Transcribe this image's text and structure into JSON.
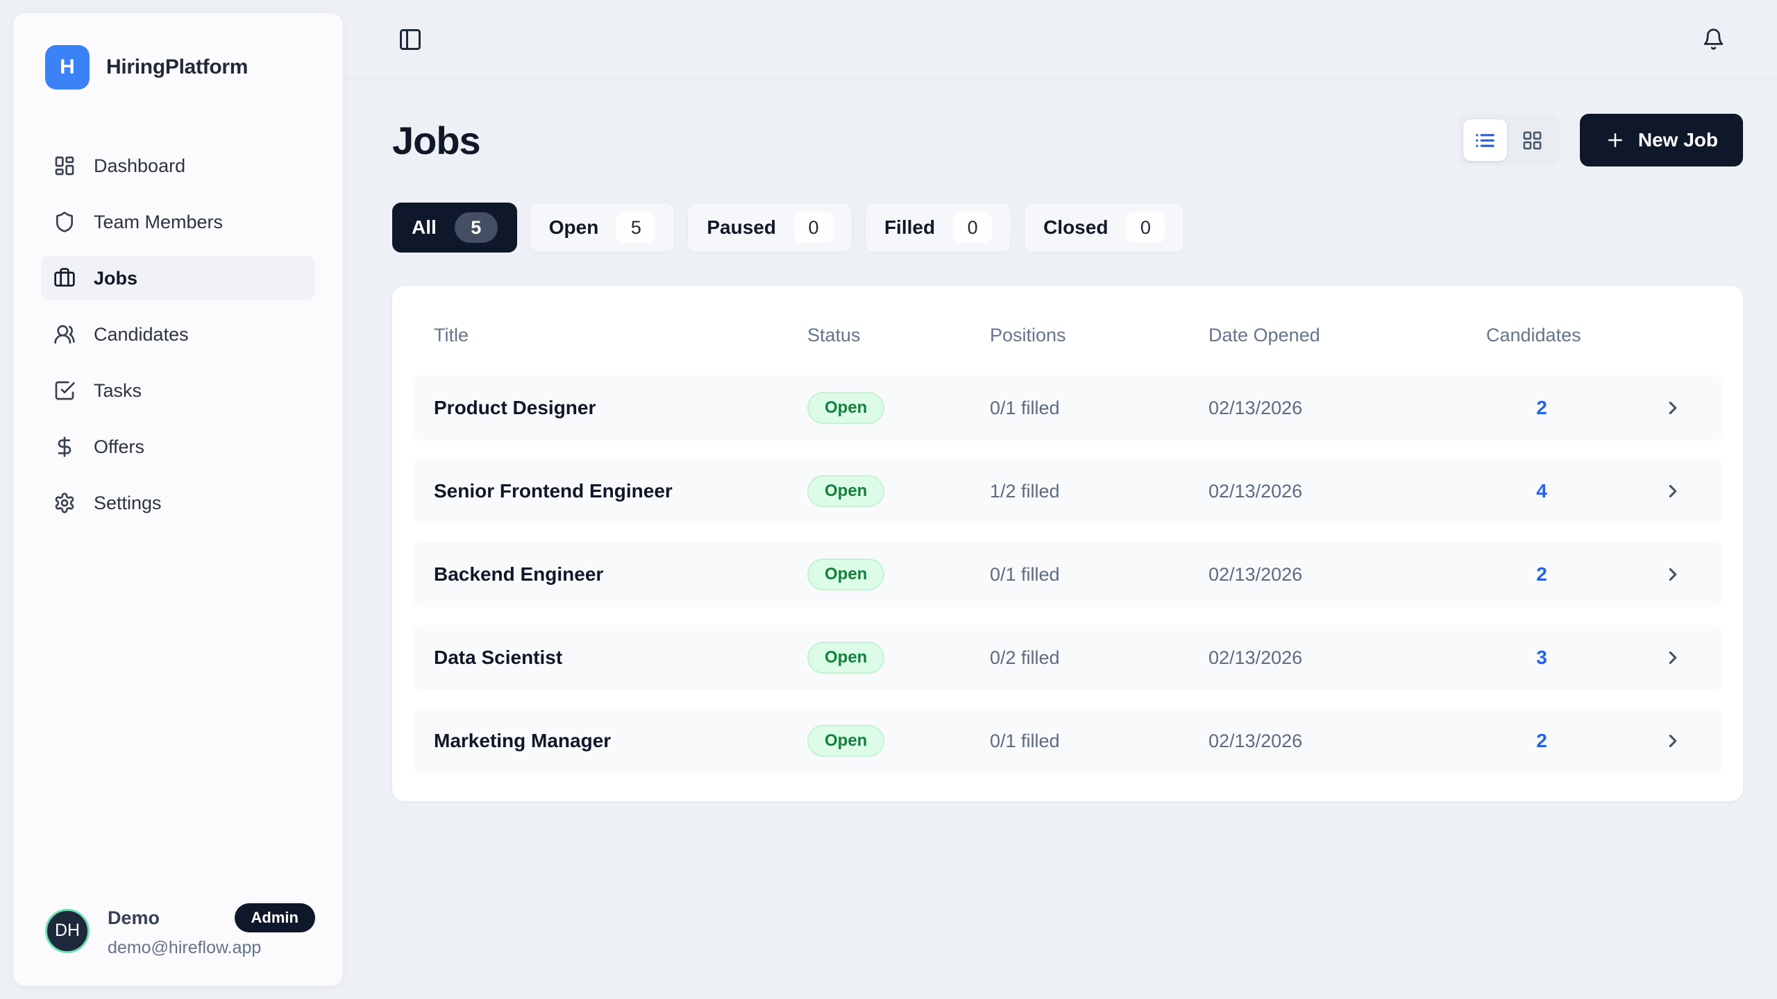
{
  "brand": {
    "initial": "H",
    "name": "HiringPlatform"
  },
  "icons": {
    "sidebar_toggle": "panel-left-icon",
    "notifications": "bell-icon",
    "list_view": "list-icon",
    "grid_view": "grid-icon",
    "new_job_plus": "plus-icon",
    "row_chevron": "chevron-right-icon"
  },
  "sidebar": {
    "items": [
      {
        "label": "Dashboard",
        "icon": "dashboard-icon"
      },
      {
        "label": "Team Members",
        "icon": "shield-icon"
      },
      {
        "label": "Jobs",
        "icon": "briefcase-icon",
        "active": true
      },
      {
        "label": "Candidates",
        "icon": "users-icon"
      },
      {
        "label": "Tasks",
        "icon": "tasks-check-icon"
      },
      {
        "label": "Offers",
        "icon": "dollar-icon"
      },
      {
        "label": "Settings",
        "icon": "gear-icon"
      }
    ],
    "user": {
      "initials": "DH",
      "name": "Demo",
      "role": "Admin",
      "email": "demo@hireflow.app"
    }
  },
  "page": {
    "title": "Jobs",
    "new_job_label": "New Job",
    "filters": [
      {
        "label": "All",
        "count": "5",
        "active": true
      },
      {
        "label": "Open",
        "count": "5"
      },
      {
        "label": "Paused",
        "count": "0"
      },
      {
        "label": "Filled",
        "count": "0"
      },
      {
        "label": "Closed",
        "count": "0"
      }
    ],
    "table": {
      "columns": {
        "title": "Title",
        "status": "Status",
        "positions": "Positions",
        "date_opened": "Date Opened",
        "candidates": "Candidates"
      },
      "rows": [
        {
          "title": "Product Designer",
          "status": "Open",
          "positions": "0/1 filled",
          "date_opened": "02/13/2026",
          "candidates": "2"
        },
        {
          "title": "Senior Frontend Engineer",
          "status": "Open",
          "positions": "1/2 filled",
          "date_opened": "02/13/2026",
          "candidates": "4"
        },
        {
          "title": "Backend Engineer",
          "status": "Open",
          "positions": "0/1 filled",
          "date_opened": "02/13/2026",
          "candidates": "2"
        },
        {
          "title": "Data Scientist",
          "status": "Open",
          "positions": "0/2 filled",
          "date_opened": "02/13/2026",
          "candidates": "3"
        },
        {
          "title": "Marketing Manager",
          "status": "Open",
          "positions": "0/1 filled",
          "date_opened": "02/13/2026",
          "candidates": "2"
        }
      ]
    }
  },
  "colors": {
    "accent_blue": "#3b82f6",
    "navy": "#0f172a",
    "open_badge_bg": "#dcfce7",
    "open_badge_text": "#15803d",
    "link_blue": "#2563eb"
  }
}
